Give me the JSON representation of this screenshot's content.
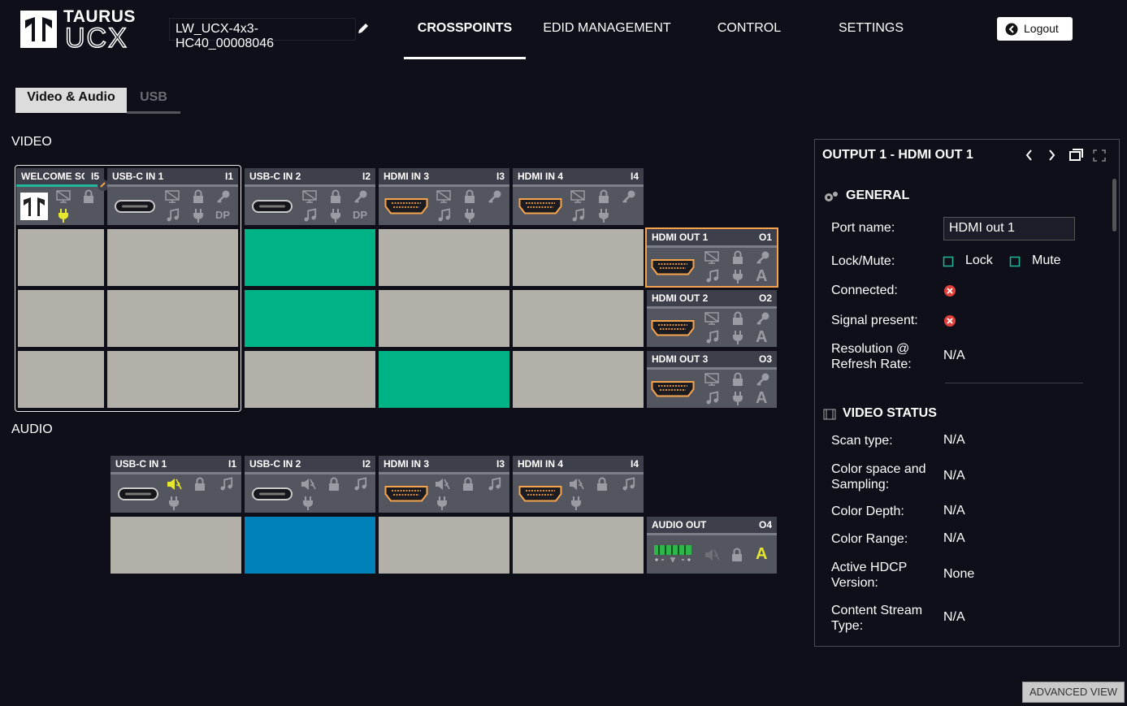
{
  "header": {
    "logo_top": "TAURUS",
    "logo_bottom": "UCX",
    "device_name": "LW_UCX-4x3-HC40_00008046",
    "nav": [
      "CROSSPOINTS",
      "EDID MANAGEMENT",
      "CONTROL",
      "SETTINGS"
    ],
    "active_nav": 0,
    "logout": "Logout"
  },
  "tabs": {
    "items": [
      "Video & Audio",
      "USB"
    ],
    "active": 0
  },
  "video": {
    "label": "VIDEO",
    "inputs": [
      {
        "name": "WELCOME SC...",
        "id": "I5",
        "connector": "logo"
      },
      {
        "name": "USB-C IN 1",
        "id": "I1",
        "connector": "usbc",
        "icon_label": "DP"
      },
      {
        "name": "USB-C IN 2",
        "id": "I2",
        "connector": "usbc",
        "icon_label": "DP"
      },
      {
        "name": "HDMI IN 3",
        "id": "I3",
        "connector": "hdmi"
      },
      {
        "name": "HDMI IN 4",
        "id": "I4",
        "connector": "hdmi"
      }
    ],
    "outputs": [
      {
        "name": "HDMI OUT 1",
        "id": "O1",
        "icon_label": "A",
        "selected": true
      },
      {
        "name": "HDMI OUT 2",
        "id": "O2",
        "icon_label": "A"
      },
      {
        "name": "HDMI OUT 3",
        "id": "O3",
        "icon_label": "A"
      }
    ],
    "matrix": [
      [
        false,
        false,
        true,
        false,
        false
      ],
      [
        false,
        false,
        true,
        false,
        false
      ],
      [
        false,
        false,
        false,
        true,
        false
      ]
    ],
    "connected_color": "#00b386"
  },
  "audio": {
    "label": "AUDIO",
    "inputs": [
      {
        "name": "USB-C IN 1",
        "id": "I1",
        "connector": "usbc",
        "muted_active": true
      },
      {
        "name": "USB-C IN 2",
        "id": "I2",
        "connector": "usbc"
      },
      {
        "name": "HDMI IN 3",
        "id": "I3",
        "connector": "hdmi"
      },
      {
        "name": "HDMI IN 4",
        "id": "I4",
        "connector": "hdmi"
      }
    ],
    "outputs": [
      {
        "name": "AUDIO OUT",
        "id": "O4",
        "icon_label": "A",
        "connector": "terminal"
      }
    ],
    "matrix": [
      [
        false,
        true,
        false,
        false
      ]
    ],
    "connected_color": "#0082b8"
  },
  "panel": {
    "title": "OUTPUT 1 - HDMI OUT 1",
    "sections": [
      {
        "title": "GENERAL",
        "fields": [
          {
            "label": "Port name:",
            "input": "HDMI out 1"
          },
          {
            "label": "Lock/Mute:",
            "options": [
              "Lock",
              "Mute"
            ]
          },
          {
            "label": "Connected:",
            "status": false
          },
          {
            "label": "Signal present:",
            "status": false
          },
          {
            "label": "Resolution @ Refresh Rate:",
            "value": "N/A"
          }
        ]
      },
      {
        "title": "VIDEO STATUS",
        "fields": [
          {
            "label": "Scan type:",
            "value": "N/A"
          },
          {
            "label": "Color space and Sampling:",
            "value": "N/A"
          },
          {
            "label": "Color Depth:",
            "value": "N/A"
          },
          {
            "label": "Color Range:",
            "value": "N/A"
          },
          {
            "label": "Active HDCP Version:",
            "value": "None"
          },
          {
            "label": "Content Stream Type:",
            "value": "N/A"
          }
        ]
      }
    ]
  },
  "advanced_view": "ADVANCED VIEW"
}
